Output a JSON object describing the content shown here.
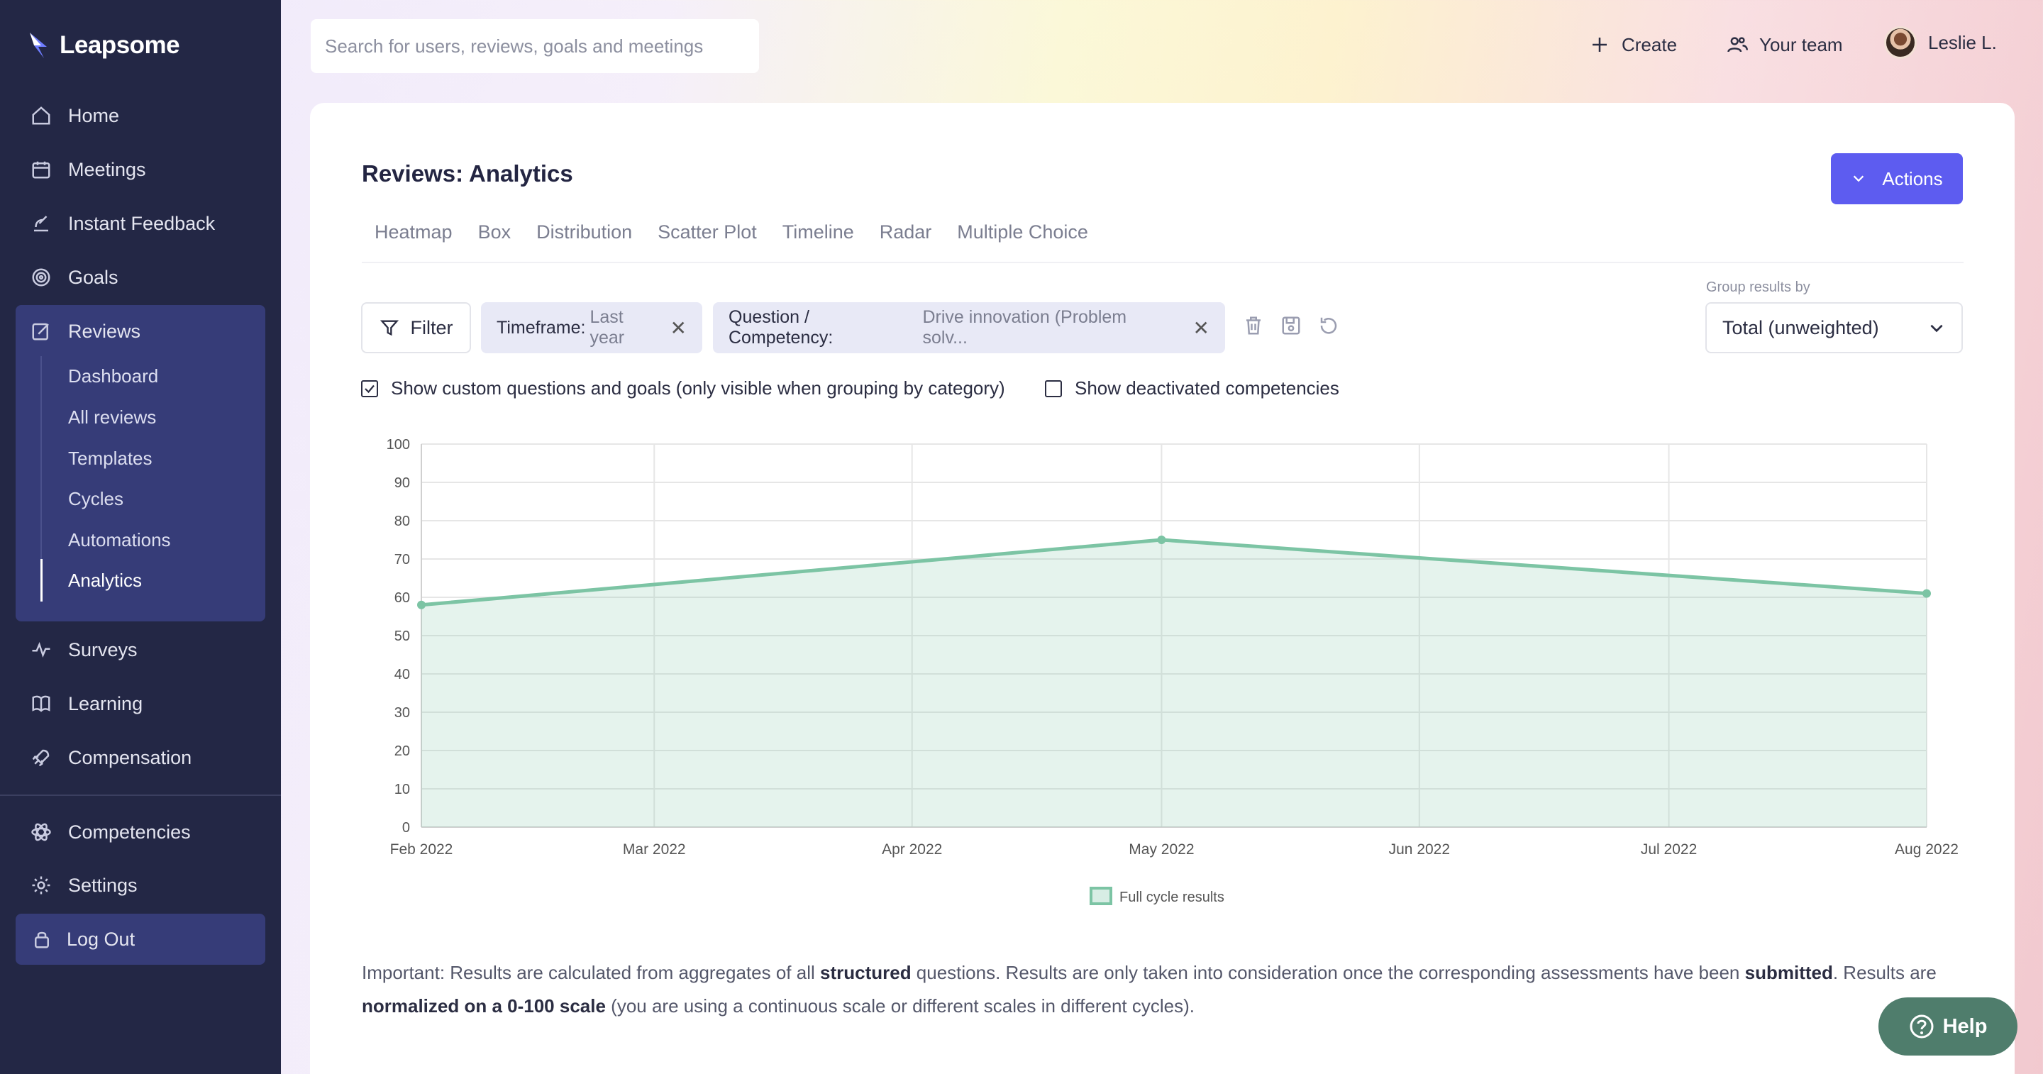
{
  "app": {
    "name": "Leapsome"
  },
  "sidebar": {
    "items": [
      {
        "label": "Home",
        "icon": "home-icon"
      },
      {
        "label": "Meetings",
        "icon": "calendar-icon"
      },
      {
        "label": "Instant Feedback",
        "icon": "feedback-icon"
      },
      {
        "label": "Goals",
        "icon": "target-icon"
      },
      {
        "label": "Reviews",
        "icon": "edit-icon"
      }
    ],
    "reviews_sub": [
      "Dashboard",
      "All reviews",
      "Templates",
      "Cycles",
      "Automations",
      "Analytics"
    ],
    "active_sub": "Analytics",
    "items_after": [
      {
        "label": "Surveys",
        "icon": "pulse-icon"
      },
      {
        "label": "Learning",
        "icon": "book-icon"
      },
      {
        "label": "Compensation",
        "icon": "rocket-icon"
      }
    ],
    "bottom": [
      {
        "label": "Competencies",
        "icon": "atom-icon"
      },
      {
        "label": "Settings",
        "icon": "gear-icon"
      }
    ],
    "logout": "Log Out"
  },
  "topbar": {
    "search_placeholder": "Search for users, reviews, goals and meetings",
    "create": "Create",
    "team": "Your team",
    "user": "Leslie L."
  },
  "page": {
    "title": "Reviews: Analytics",
    "actions": "Actions",
    "tabs": [
      "Heatmap",
      "Box",
      "Distribution",
      "Scatter Plot",
      "Timeline",
      "Radar",
      "Multiple Choice"
    ],
    "filter": "Filter",
    "chip_timeframe": {
      "key": "Timeframe:",
      "value": "Last year"
    },
    "chip_question": {
      "key": "Question / Competency:",
      "value": "Drive innovation (Problem solv..."
    },
    "group_label": "Group results by",
    "group_value": "Total (unweighted)",
    "check_custom": {
      "label": "Show custom questions and goals (only visible when grouping by category)",
      "checked": true
    },
    "check_deactivated": {
      "label": "Show deactivated competencies",
      "checked": false
    },
    "notice": {
      "p1": "Important: Results are calculated from aggregates of all ",
      "b1": "structured",
      "p2": " questions. Results are only taken into consideration once the corresponding assessments have been ",
      "b2": "submitted",
      "p3": ". Results are ",
      "b3": "normalized on a 0-100 scale",
      "p4": " (you are using a continuous scale or different scales in different cycles)."
    },
    "help": "Help"
  },
  "chart_data": {
    "type": "area",
    "x": [
      "Feb 2022",
      "Mar 2022",
      "Apr 2022",
      "May 2022",
      "Jun 2022",
      "Jul 2022",
      "Aug 2022"
    ],
    "x_days": [
      0,
      28,
      59,
      89,
      120,
      150,
      181
    ],
    "series": [
      {
        "name": "Full cycle results",
        "points": [
          [
            0,
            58
          ],
          [
            89,
            75
          ],
          [
            181,
            61
          ]
        ],
        "color": "#7cc4a4"
      }
    ],
    "ylim": [
      0,
      100
    ],
    "yticks": [
      0,
      10,
      20,
      30,
      40,
      50,
      60,
      70,
      80,
      90,
      100
    ],
    "grid": true,
    "legend": "bottom"
  }
}
